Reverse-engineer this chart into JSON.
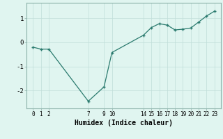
{
  "x": [
    0,
    1,
    2,
    7,
    9,
    10,
    14,
    15,
    16,
    17,
    18,
    19,
    20,
    21,
    22,
    23
  ],
  "y": [
    -0.2,
    -0.28,
    -0.28,
    -2.45,
    -1.85,
    -0.42,
    0.3,
    0.62,
    0.78,
    0.72,
    0.52,
    0.55,
    0.6,
    0.85,
    1.1,
    1.3
  ],
  "xticks": [
    0,
    1,
    2,
    7,
    9,
    10,
    14,
    15,
    16,
    17,
    18,
    19,
    20,
    21,
    22,
    23
  ],
  "yticks": [
    -2,
    -1,
    0,
    1
  ],
  "xlabel": "Humidex (Indice chaleur)",
  "line_color": "#2a7a6e",
  "marker_color": "#2a7a6e",
  "bg_color": "#e0f5f0",
  "grid_color": "#c0ddd8",
  "spine_color": "#8ab0a8",
  "figsize": [
    3.2,
    2.0
  ],
  "dpi": 100
}
